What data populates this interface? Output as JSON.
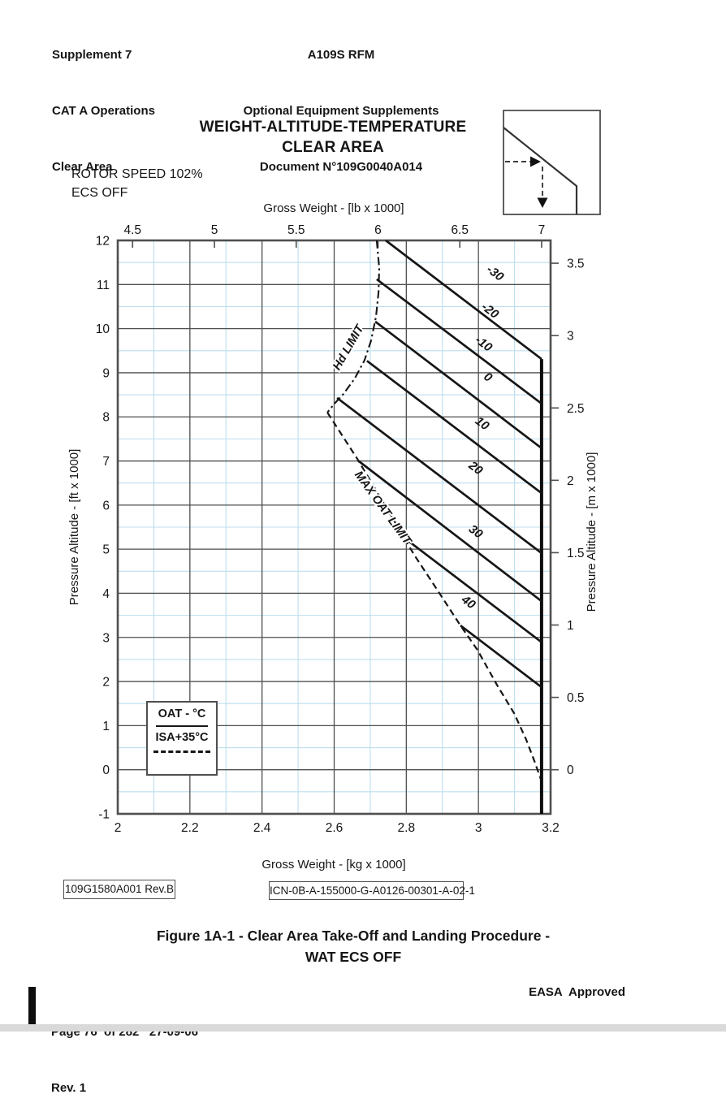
{
  "header": {
    "left_lines": [
      "Supplement 7",
      "CAT A Operations",
      "Clear Area"
    ],
    "center_lines": [
      "A109S RFM",
      "Optional Equipment Supplements",
      "Document N°109G0040A014"
    ]
  },
  "chart": {
    "title_line1": "WEIGHT-ALTITUDE-TEMPERATURE",
    "title_line2": "CLEAR AREA",
    "condition_line1": "ROTOR SPEED 102%",
    "condition_line2": "ECS OFF"
  },
  "legend": {
    "line1": "OAT - °C",
    "line2": "ISA+35°C"
  },
  "ref_left": "109G1580A001 Rev.B",
  "ref_right": "ICN-0B-A-155000-G-A0126-00301-A-02-1",
  "caption": "Figure 1A-1 -  Clear Area Take-Off and Landing Procedure -\nWAT ECS OFF",
  "footer": {
    "page_line": "Page 76  of 282   27-09-06",
    "rev_line": "Rev. 1",
    "approval": "EASA  Approved"
  },
  "chart_data": {
    "type": "line",
    "title": "WEIGHT-ALTITUDE-TEMPERATURE CLEAR AREA",
    "grid": true,
    "x_axis_bottom": {
      "label": "Gross Weight - [kg x 1000]",
      "range": [
        2.0,
        3.2
      ],
      "ticks": [
        2,
        2.2,
        2.4,
        2.6,
        2.8,
        3,
        3.2
      ],
      "tick_labels": [
        "2",
        "2.2",
        "2.4",
        "2.6",
        "2.8",
        "3",
        "3.2"
      ],
      "minor": [
        2.1,
        2.3,
        2.5,
        2.7,
        2.9,
        3.1
      ]
    },
    "x_axis_top": {
      "label": "Gross Weight - [lb x 1000]",
      "ticks": [
        4.5,
        5,
        5.5,
        6,
        6.5,
        7
      ],
      "tick_labels": [
        "4.5",
        "5",
        "5.5",
        "6",
        "6.5",
        "7"
      ],
      "lb_to_kg": 0.453592
    },
    "y_axis_left": {
      "label": "Pressure Altitude - [ft x 1000]",
      "range": [
        -1,
        12
      ],
      "ticks": [
        12,
        11,
        10,
        9,
        8,
        7,
        6,
        5,
        4,
        3,
        2,
        1,
        0,
        -1
      ],
      "tick_labels": [
        "12",
        "11",
        "10",
        "9",
        "8",
        "7",
        "6",
        "5",
        "4",
        "3",
        "2",
        "1",
        "0",
        "-1"
      ],
      "minor": [
        11.5,
        10.5,
        9.5,
        8.5,
        7.5,
        6.5,
        5.5,
        4.5,
        3.5,
        2.5,
        1.5,
        0.5,
        -0.5
      ]
    },
    "y_axis_right": {
      "label": "Pressure Altitude - [m x 1000]",
      "ticks": [
        3.5,
        3,
        2.5,
        2,
        1.5,
        1,
        0.5,
        0
      ],
      "tick_labels": [
        "3.5",
        "3",
        "2.5",
        "2",
        "1.5",
        "1",
        "0.5",
        "0"
      ],
      "m_to_ft": 3.28084
    },
    "oat_lines": [
      {
        "oat": "-30",
        "points_kg_ft": [
          [
            2.743,
            12.0
          ],
          [
            3.175,
            9.31
          ]
        ],
        "label_at": [
          3.04,
          11.19
        ]
      },
      {
        "oat": "-20",
        "points_kg_ft": [
          [
            2.718,
            11.12
          ],
          [
            3.175,
            8.3
          ]
        ],
        "label_at": [
          3.026,
          10.34
        ]
      },
      {
        "oat": "-10",
        "points_kg_ft": [
          [
            2.714,
            10.16
          ],
          [
            3.175,
            7.29
          ]
        ],
        "label_at": [
          3.008,
          9.59
        ]
      },
      {
        "oat": "0",
        "points_kg_ft": [
          [
            2.691,
            9.27
          ],
          [
            3.175,
            6.27
          ]
        ],
        "label_at": [
          3.02,
          8.83
        ]
      },
      {
        "oat": "10",
        "points_kg_ft": [
          [
            2.608,
            8.43
          ],
          [
            3.175,
            4.91
          ]
        ],
        "label_at": [
          3.004,
          7.78
        ]
      },
      {
        "oat": "20",
        "points_kg_ft": [
          [
            2.666,
            7.01
          ],
          [
            3.175,
            3.82
          ]
        ],
        "label_at": [
          2.986,
          6.77
        ]
      },
      {
        "oat": "30",
        "points_kg_ft": [
          [
            2.797,
            5.24
          ],
          [
            3.175,
            2.89
          ]
        ],
        "label_at": [
          2.986,
          5.33
        ]
      },
      {
        "oat": "40",
        "points_kg_ft": [
          [
            2.95,
            3.27
          ],
          [
            3.175,
            1.87
          ]
        ],
        "label_at": [
          2.966,
          3.73
        ]
      }
    ],
    "hd_limit": {
      "label": "Hd LIMIT",
      "label_at": [
        2.648,
        9.53
      ],
      "label_angle": -60,
      "points_kg_ft": [
        [
          2.718,
          12.0
        ],
        [
          2.725,
          11.37
        ],
        [
          2.723,
          10.82
        ],
        [
          2.716,
          10.27
        ],
        [
          2.702,
          9.72
        ],
        [
          2.684,
          9.28
        ],
        [
          2.657,
          8.87
        ],
        [
          2.626,
          8.52
        ],
        [
          2.601,
          8.3
        ],
        [
          2.581,
          8.1
        ]
      ]
    },
    "max_oat_limit": {
      "label": "MAX OAT LIMIT",
      "label_at": [
        2.727,
        5.89
      ],
      "label_angle": 54,
      "points_kg_ft": [
        [
          2.581,
          8.1
        ],
        [
          2.664,
          7.05
        ],
        [
          2.747,
          5.91
        ],
        [
          2.822,
          4.87
        ],
        [
          2.896,
          3.95
        ],
        [
          2.95,
          3.27
        ],
        [
          2.997,
          2.72
        ],
        [
          3.051,
          1.93
        ],
        [
          3.099,
          1.28
        ],
        [
          3.132,
          0.69
        ],
        [
          3.155,
          0.2
        ],
        [
          3.171,
          -0.17
        ],
        [
          3.175,
          -0.26
        ]
      ]
    },
    "max_weight_line": {
      "kg": 3.175,
      "ft_top": 9.31,
      "ft_bottom": -1
    },
    "oat_label_angle": 37,
    "colors": {
      "minor_grid": "#bcdeee",
      "major_grid": "#4f4f4f",
      "ink": "#161616"
    }
  }
}
